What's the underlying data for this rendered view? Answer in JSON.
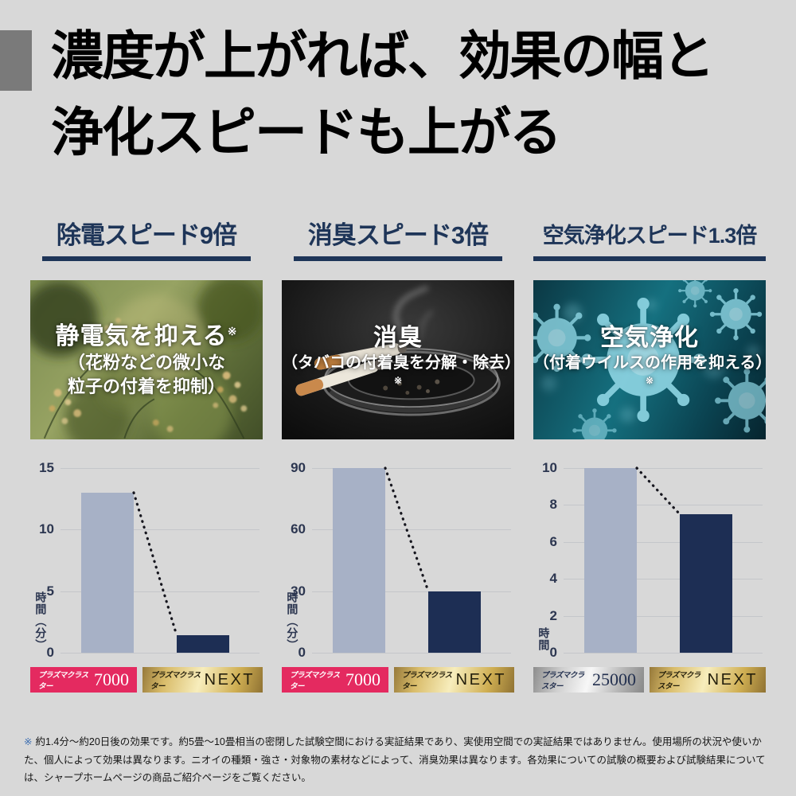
{
  "title": {
    "line1": "濃度が上がれば、効果の幅と",
    "line2": "浄化スピードも上がる"
  },
  "colors": {
    "background": "#d8d8d8",
    "title_square_gray": "#7a7a7a",
    "header_navy": "#1e3558",
    "bar_light": "#a7b1c6",
    "bar_dark": "#1d2e54",
    "gridline": "#c4c6ca",
    "badge_pink": "#e42a60",
    "footnote_mark_blue": "#3b6db1"
  },
  "columns": [
    {
      "header": "除電スピード9倍",
      "caption": {
        "main": "静電気を抑える",
        "main_note": "※",
        "sub1": "（花粉などの微小な",
        "sub2": "粒子の付着を抑制）"
      },
      "badges": [
        {
          "brand": "プラズマクラスター",
          "model": "7000",
          "style": "pink"
        },
        {
          "brand": "プラズマクラスター",
          "model": "NEXT",
          "style": "gold"
        }
      ]
    },
    {
      "header": "消臭スピード3倍",
      "caption": {
        "main": "消臭",
        "sub1": "（タバコの付着臭を分解・除去）",
        "sub1_note": "※"
      },
      "badges": [
        {
          "brand": "プラズマクラスター",
          "model": "7000",
          "style": "pink"
        },
        {
          "brand": "プラズマクラスター",
          "model": "NEXT",
          "style": "gold"
        }
      ]
    },
    {
      "header": "空気浄化スピード1.3倍",
      "caption": {
        "main": "空気浄化",
        "sub1": "（付着ウイルスの作用を抑える）",
        "sub1_note": "※"
      },
      "badges": [
        {
          "brand": "プラズマクラスター",
          "model": "25000",
          "style": "silver"
        },
        {
          "brand": "プラズマクラスター",
          "model": "NEXT",
          "style": "gold"
        }
      ]
    }
  ],
  "chart_data": [
    {
      "type": "bar",
      "title": "除電スピード9倍",
      "categories": [
        "プラズマクラスター7000",
        "プラズマクラスターNEXT"
      ],
      "values": [
        13,
        1.4
      ],
      "bar_colors": [
        "#a7b1c6",
        "#1d2e54"
      ],
      "ylabel": "時間（分）",
      "ylim": [
        0,
        15
      ],
      "yticks": [
        0,
        5,
        10,
        15
      ],
      "grid": true,
      "annotation": "dotted decline line from bar 1 top to bar 2 top"
    },
    {
      "type": "bar",
      "title": "消臭スピード3倍",
      "categories": [
        "プラズマクラスター7000",
        "プラズマクラスターNEXT"
      ],
      "values": [
        90,
        30
      ],
      "bar_colors": [
        "#a7b1c6",
        "#1d2e54"
      ],
      "ylabel": "時間（分）",
      "ylim": [
        0,
        90
      ],
      "yticks": [
        0,
        30,
        60,
        90
      ],
      "grid": true,
      "annotation": "dotted decline line from bar 1 top to bar 2 top"
    },
    {
      "type": "bar",
      "title": "空気浄化スピード1.3倍",
      "categories": [
        "プラズマクラスター25000",
        "プラズマクラスターNEXT"
      ],
      "values": [
        10,
        7.5
      ],
      "bar_colors": [
        "#a7b1c6",
        "#1d2e54"
      ],
      "ylabel": "時間",
      "ylim": [
        0,
        10
      ],
      "yticks": [
        0,
        2,
        4,
        6,
        8,
        10
      ],
      "grid": true,
      "annotation": "dotted decline line from bar 1 top to bar 2 top"
    }
  ],
  "footnote": {
    "mark": "※",
    "text": "約1.4分～約20日後の効果です。約5畳～10畳相当の密閉した試験空間における実証結果であり、実使用空間での実証結果ではありません。使用場所の状況や使いかた、個人によって効果は異なります。ニオイの種類・強さ・対象物の素材などによって、消臭効果は異なります。各効果についての試験の概要および試験結果については、シャープホームページの商品ご紹介ページをご覧ください。"
  }
}
